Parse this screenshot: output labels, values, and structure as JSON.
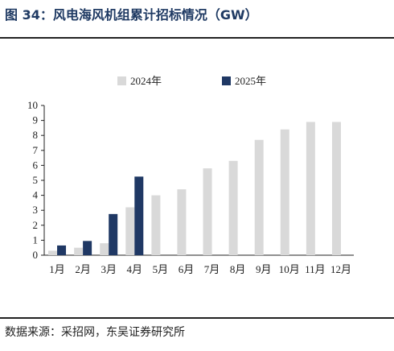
{
  "title": "图 34：风电海风机组累计招标情况（GW）",
  "source": "数据来源：采招网，东吴证券研究所",
  "colors": {
    "series_2024": "#d9d9d9",
    "series_2025": "#1f3864",
    "title": "#1f3a63"
  },
  "chart_data": {
    "type": "bar",
    "categories": [
      "1月",
      "2月",
      "3月",
      "4月",
      "5月",
      "6月",
      "7月",
      "8月",
      "9月",
      "10月",
      "11月",
      "12月"
    ],
    "series": [
      {
        "name": "2024年",
        "values": [
          0.3,
          0.5,
          0.8,
          3.2,
          4.0,
          4.4,
          5.8,
          6.3,
          7.7,
          8.4,
          8.9,
          8.9
        ]
      },
      {
        "name": "2025年",
        "values": [
          0.65,
          0.95,
          2.75,
          5.25,
          null,
          null,
          null,
          null,
          null,
          null,
          null,
          null
        ]
      }
    ],
    "yticks": [
      "0",
      "1",
      "2",
      "3",
      "4",
      "5",
      "6",
      "7",
      "8",
      "9",
      "10"
    ],
    "ylim": [
      0,
      10
    ],
    "legend_position": "top"
  }
}
